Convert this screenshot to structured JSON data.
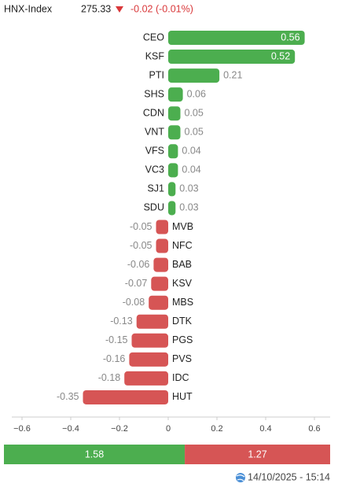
{
  "header": {
    "name": "HNX-Index",
    "value": "275.33",
    "change": "-0.02 (-0.01%)"
  },
  "chart_data": {
    "type": "bar",
    "orientation": "horizontal",
    "categories": [
      "CEO",
      "KSF",
      "PTI",
      "SHS",
      "CDN",
      "VNT",
      "VFS",
      "VC3",
      "SJ1",
      "SDU",
      "MVB",
      "NFC",
      "BAB",
      "KSV",
      "MBS",
      "DTK",
      "PGS",
      "PVS",
      "IDC",
      "HUT"
    ],
    "values": [
      0.56,
      0.52,
      0.21,
      0.06,
      0.05,
      0.05,
      0.04,
      0.04,
      0.03,
      0.03,
      -0.05,
      -0.05,
      -0.06,
      -0.07,
      -0.08,
      -0.13,
      -0.15,
      -0.16,
      -0.18,
      -0.35
    ],
    "positive_color": "#4cae4f",
    "negative_color": "#d65555",
    "xlim": [
      -0.6,
      0.6
    ],
    "xticks": [
      {
        "value": -0.6,
        "label": "−0.6"
      },
      {
        "value": -0.4,
        "label": "−0.4"
      },
      {
        "value": -0.2,
        "label": "−0.2"
      },
      0,
      0.2,
      0.4,
      0.6
    ]
  },
  "summary": {
    "advance": 1.58,
    "decline": 1.27,
    "advance_color": "#4cae4f",
    "decline_color": "#d65555"
  },
  "footer": {
    "timestamp": "14/10/2025 - 15:14"
  }
}
